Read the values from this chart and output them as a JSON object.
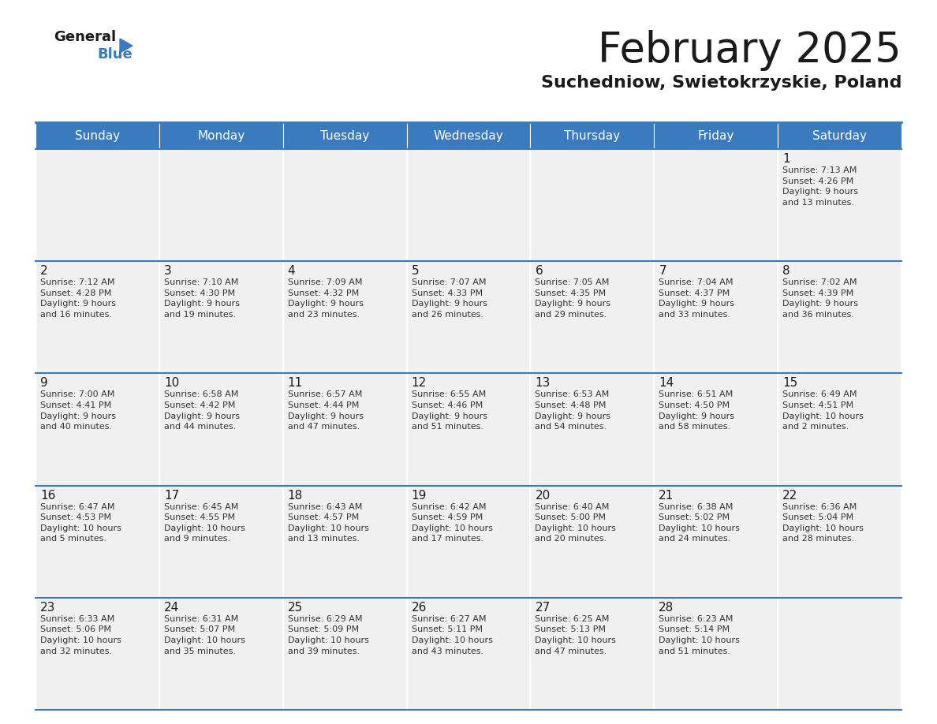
{
  "title": "February 2025",
  "subtitle": "Suchedniow, Swietokrzyskie, Poland",
  "header_color": "#3a7abf",
  "header_text_color": "#ffffff",
  "cell_bg_color": "#f0f0f0",
  "border_color": "#3a7abf",
  "cell_border_color": "#ffffff",
  "day_headers": [
    "Sunday",
    "Monday",
    "Tuesday",
    "Wednesday",
    "Thursday",
    "Friday",
    "Saturday"
  ],
  "title_color": "#1a1a1a",
  "subtitle_color": "#1a1a1a",
  "day_number_color": "#1a1a1a",
  "cell_text_color": "#333333",
  "logo_general_color": "#1a1a1a",
  "logo_blue_color": "#3a7abf",
  "weeks": [
    [
      {
        "day": "",
        "info": ""
      },
      {
        "day": "",
        "info": ""
      },
      {
        "day": "",
        "info": ""
      },
      {
        "day": "",
        "info": ""
      },
      {
        "day": "",
        "info": ""
      },
      {
        "day": "",
        "info": ""
      },
      {
        "day": "1",
        "info": "Sunrise: 7:13 AM\nSunset: 4:26 PM\nDaylight: 9 hours\nand 13 minutes."
      }
    ],
    [
      {
        "day": "2",
        "info": "Sunrise: 7:12 AM\nSunset: 4:28 PM\nDaylight: 9 hours\nand 16 minutes."
      },
      {
        "day": "3",
        "info": "Sunrise: 7:10 AM\nSunset: 4:30 PM\nDaylight: 9 hours\nand 19 minutes."
      },
      {
        "day": "4",
        "info": "Sunrise: 7:09 AM\nSunset: 4:32 PM\nDaylight: 9 hours\nand 23 minutes."
      },
      {
        "day": "5",
        "info": "Sunrise: 7:07 AM\nSunset: 4:33 PM\nDaylight: 9 hours\nand 26 minutes."
      },
      {
        "day": "6",
        "info": "Sunrise: 7:05 AM\nSunset: 4:35 PM\nDaylight: 9 hours\nand 29 minutes."
      },
      {
        "day": "7",
        "info": "Sunrise: 7:04 AM\nSunset: 4:37 PM\nDaylight: 9 hours\nand 33 minutes."
      },
      {
        "day": "8",
        "info": "Sunrise: 7:02 AM\nSunset: 4:39 PM\nDaylight: 9 hours\nand 36 minutes."
      }
    ],
    [
      {
        "day": "9",
        "info": "Sunrise: 7:00 AM\nSunset: 4:41 PM\nDaylight: 9 hours\nand 40 minutes."
      },
      {
        "day": "10",
        "info": "Sunrise: 6:58 AM\nSunset: 4:42 PM\nDaylight: 9 hours\nand 44 minutes."
      },
      {
        "day": "11",
        "info": "Sunrise: 6:57 AM\nSunset: 4:44 PM\nDaylight: 9 hours\nand 47 minutes."
      },
      {
        "day": "12",
        "info": "Sunrise: 6:55 AM\nSunset: 4:46 PM\nDaylight: 9 hours\nand 51 minutes."
      },
      {
        "day": "13",
        "info": "Sunrise: 6:53 AM\nSunset: 4:48 PM\nDaylight: 9 hours\nand 54 minutes."
      },
      {
        "day": "14",
        "info": "Sunrise: 6:51 AM\nSunset: 4:50 PM\nDaylight: 9 hours\nand 58 minutes."
      },
      {
        "day": "15",
        "info": "Sunrise: 6:49 AM\nSunset: 4:51 PM\nDaylight: 10 hours\nand 2 minutes."
      }
    ],
    [
      {
        "day": "16",
        "info": "Sunrise: 6:47 AM\nSunset: 4:53 PM\nDaylight: 10 hours\nand 5 minutes."
      },
      {
        "day": "17",
        "info": "Sunrise: 6:45 AM\nSunset: 4:55 PM\nDaylight: 10 hours\nand 9 minutes."
      },
      {
        "day": "18",
        "info": "Sunrise: 6:43 AM\nSunset: 4:57 PM\nDaylight: 10 hours\nand 13 minutes."
      },
      {
        "day": "19",
        "info": "Sunrise: 6:42 AM\nSunset: 4:59 PM\nDaylight: 10 hours\nand 17 minutes."
      },
      {
        "day": "20",
        "info": "Sunrise: 6:40 AM\nSunset: 5:00 PM\nDaylight: 10 hours\nand 20 minutes."
      },
      {
        "day": "21",
        "info": "Sunrise: 6:38 AM\nSunset: 5:02 PM\nDaylight: 10 hours\nand 24 minutes."
      },
      {
        "day": "22",
        "info": "Sunrise: 6:36 AM\nSunset: 5:04 PM\nDaylight: 10 hours\nand 28 minutes."
      }
    ],
    [
      {
        "day": "23",
        "info": "Sunrise: 6:33 AM\nSunset: 5:06 PM\nDaylight: 10 hours\nand 32 minutes."
      },
      {
        "day": "24",
        "info": "Sunrise: 6:31 AM\nSunset: 5:07 PM\nDaylight: 10 hours\nand 35 minutes."
      },
      {
        "day": "25",
        "info": "Sunrise: 6:29 AM\nSunset: 5:09 PM\nDaylight: 10 hours\nand 39 minutes."
      },
      {
        "day": "26",
        "info": "Sunrise: 6:27 AM\nSunset: 5:11 PM\nDaylight: 10 hours\nand 43 minutes."
      },
      {
        "day": "27",
        "info": "Sunrise: 6:25 AM\nSunset: 5:13 PM\nDaylight: 10 hours\nand 47 minutes."
      },
      {
        "day": "28",
        "info": "Sunrise: 6:23 AM\nSunset: 5:14 PM\nDaylight: 10 hours\nand 51 minutes."
      },
      {
        "day": "",
        "info": ""
      }
    ]
  ]
}
